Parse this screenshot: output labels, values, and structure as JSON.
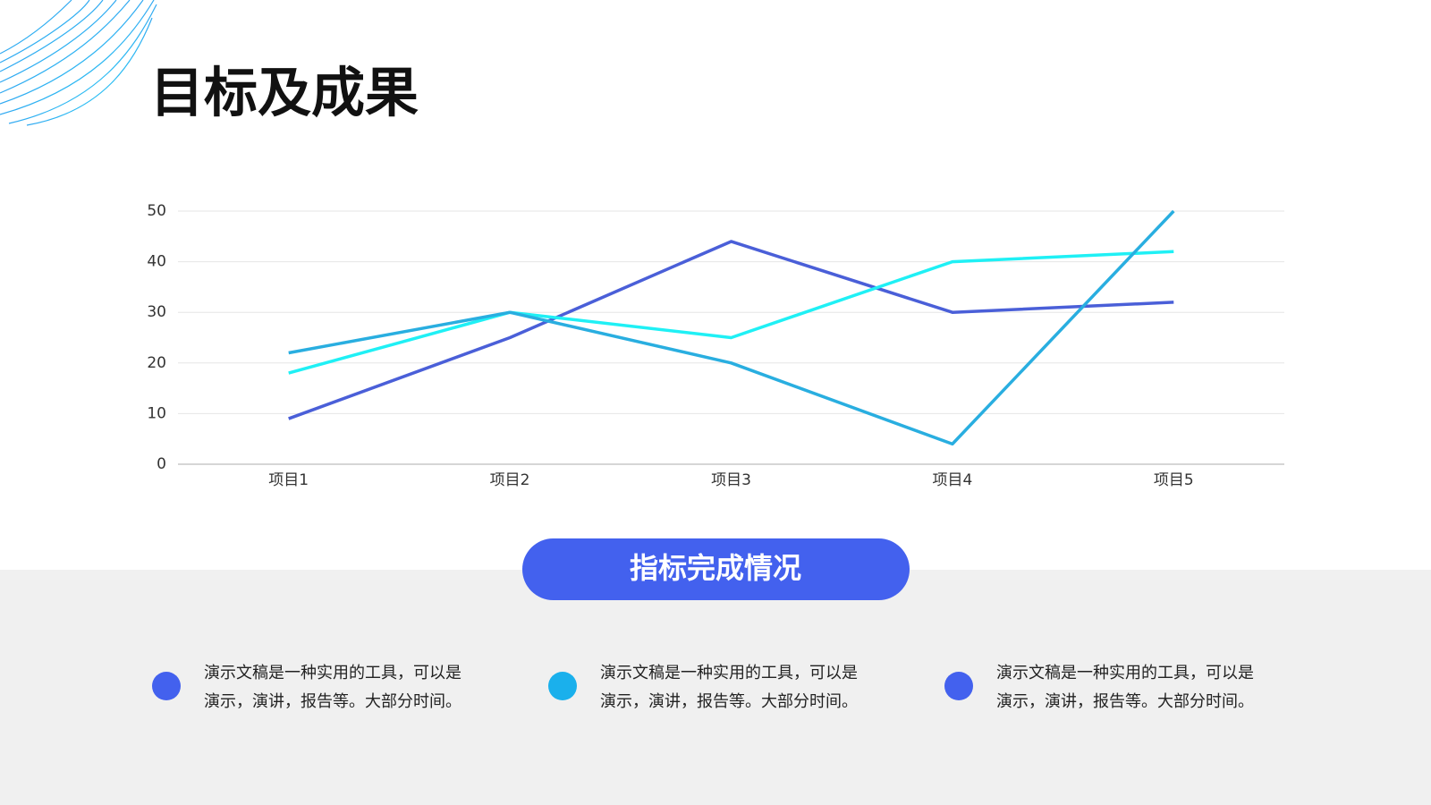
{
  "title": "目标及成果",
  "chart_data": {
    "type": "line",
    "categories": [
      "项目1",
      "项目2",
      "项目3",
      "项目4",
      "项目5"
    ],
    "series": [
      {
        "color": "#4a5fd8",
        "values": [
          9,
          25,
          44,
          30,
          32
        ]
      },
      {
        "color": "#1ff0f5",
        "values": [
          18,
          30,
          25,
          40,
          42
        ]
      },
      {
        "color": "#29aee0",
        "values": [
          22,
          30,
          20,
          4,
          50
        ]
      }
    ],
    "ylim": [
      0,
      50
    ],
    "yticks": [
      0,
      10,
      20,
      30,
      40,
      50
    ],
    "grid": true
  },
  "section_label": "指标完成情况",
  "items": [
    {
      "color": "#4361ee",
      "lines": [
        "演示文稿是一种实用的工具，可以是",
        "演示，演讲，报告等。大部分时间。"
      ]
    },
    {
      "color": "#1ab0ec",
      "lines": [
        "演示文稿是一种实用的工具，可以是",
        "演示，演讲，报告等。大部分时间。"
      ]
    },
    {
      "color": "#4361ee",
      "lines": [
        "演示文稿是一种实用的工具，可以是",
        "演示，演讲，报告等。大部分时间。"
      ]
    }
  ]
}
